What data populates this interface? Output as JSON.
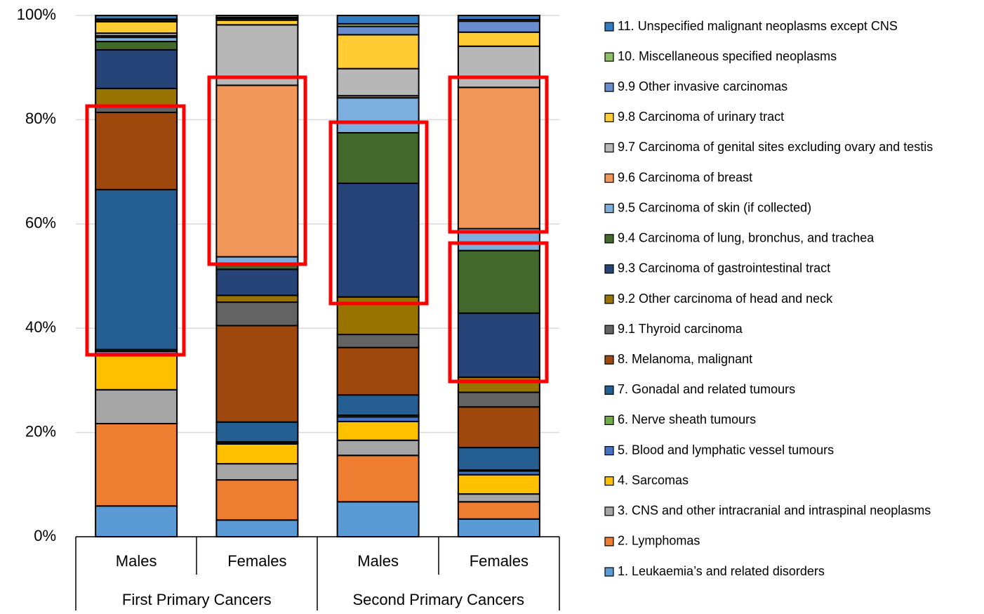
{
  "chart_data": {
    "type": "stacked_bar",
    "categories": [
      "Males",
      "Females",
      "Males",
      "Females"
    ],
    "groups": [
      "First Primary Cancers",
      "Second Primary Cancers"
    ],
    "ylim": [
      0,
      100
    ],
    "yticks": [
      {
        "value": 0,
        "label": "0%"
      },
      {
        "value": 20,
        "label": "20%"
      },
      {
        "value": 40,
        "label": "40%"
      },
      {
        "value": 60,
        "label": "60%"
      },
      {
        "value": 80,
        "label": "80%"
      },
      {
        "value": 100,
        "label": "100%"
      }
    ],
    "grid": true,
    "legend": "right",
    "series": [
      {
        "name": "1. Leukaemia’s and related disorders",
        "color": "#5b9bd5",
        "values": [
          5.9,
          3.2,
          6.7,
          3.4
        ]
      },
      {
        "name": "2. Lymphomas",
        "color": "#ed7d31",
        "values": [
          15.8,
          7.7,
          8.9,
          3.3
        ]
      },
      {
        "name": "3. CNS and other intracranial and intraspinal neoplasms",
        "color": "#a5a5a5",
        "values": [
          6.5,
          3.1,
          2.9,
          1.5
        ]
      },
      {
        "name": "4. Sarcomas",
        "color": "#ffc000",
        "values": [
          6.8,
          3.8,
          3.6,
          3.7
        ]
      },
      {
        "name": "5. Blood and lymphatic vessel tumours",
        "color": "#4472c4",
        "values": [
          0.6,
          0.3,
          0.9,
          0.7
        ]
      },
      {
        "name": "6. Nerve sheath tumours",
        "color": "#70ad47",
        "values": [
          0.3,
          0.1,
          0.3,
          0.2
        ]
      },
      {
        "name": "7. Gonadal and related tumours",
        "color": "#255e91",
        "values": [
          30.7,
          3.8,
          3.9,
          4.3
        ]
      },
      {
        "name": "8. Melanoma, malignant",
        "color": "#9e480e",
        "values": [
          14.8,
          18.5,
          9.1,
          7.8
        ]
      },
      {
        "name": "9.1 Thyroid carcinoma",
        "color": "#636363",
        "values": [
          1.2,
          4.5,
          2.5,
          2.8
        ]
      },
      {
        "name": "9.2 Other carcinoma of head and neck",
        "color": "#997300",
        "values": [
          3.4,
          1.3,
          7.2,
          2.9
        ]
      },
      {
        "name": "9.3 Carcinoma of gastrointestinal tract",
        "color": "#264478",
        "values": [
          7.4,
          5.0,
          21.8,
          12.3
        ]
      },
      {
        "name": "9.4 Carcinoma of lung, bronchus, and trachea",
        "color": "#43682b",
        "values": [
          1.6,
          1.0,
          9.7,
          12.0
        ]
      },
      {
        "name": "9.5 Carcinoma of skin (if collected)",
        "color": "#7cafdd",
        "values": [
          0.8,
          1.4,
          6.7,
          4.2
        ]
      },
      {
        "name": "9.6 Carcinoma of breast",
        "color": "#f1975a",
        "values": [
          0.3,
          32.9,
          0.4,
          27.1
        ]
      },
      {
        "name": "9.7 Carcinoma of genital sites excluding ovary and testis",
        "color": "#b7b7b7",
        "values": [
          0.5,
          11.6,
          5.2,
          7.9
        ]
      },
      {
        "name": "9.8 Carcinoma of urinary tract",
        "color": "#ffcd33",
        "values": [
          2.2,
          0.9,
          6.5,
          2.7
        ]
      },
      {
        "name": "9.9 Other invasive carcinomas",
        "color": "#698ed0",
        "values": [
          0.3,
          0.3,
          1.6,
          2.1
        ]
      },
      {
        "name": "10. Miscellaneous specified neoplasms",
        "color": "#8cc168",
        "values": [
          0.2,
          0.2,
          0.5,
          0.3
        ]
      },
      {
        "name": "11. Unspecified malignant neoplasms except CNS",
        "color": "#327dc2",
        "values": [
          0.7,
          0.4,
          1.6,
          0.8
        ]
      }
    ]
  }
}
